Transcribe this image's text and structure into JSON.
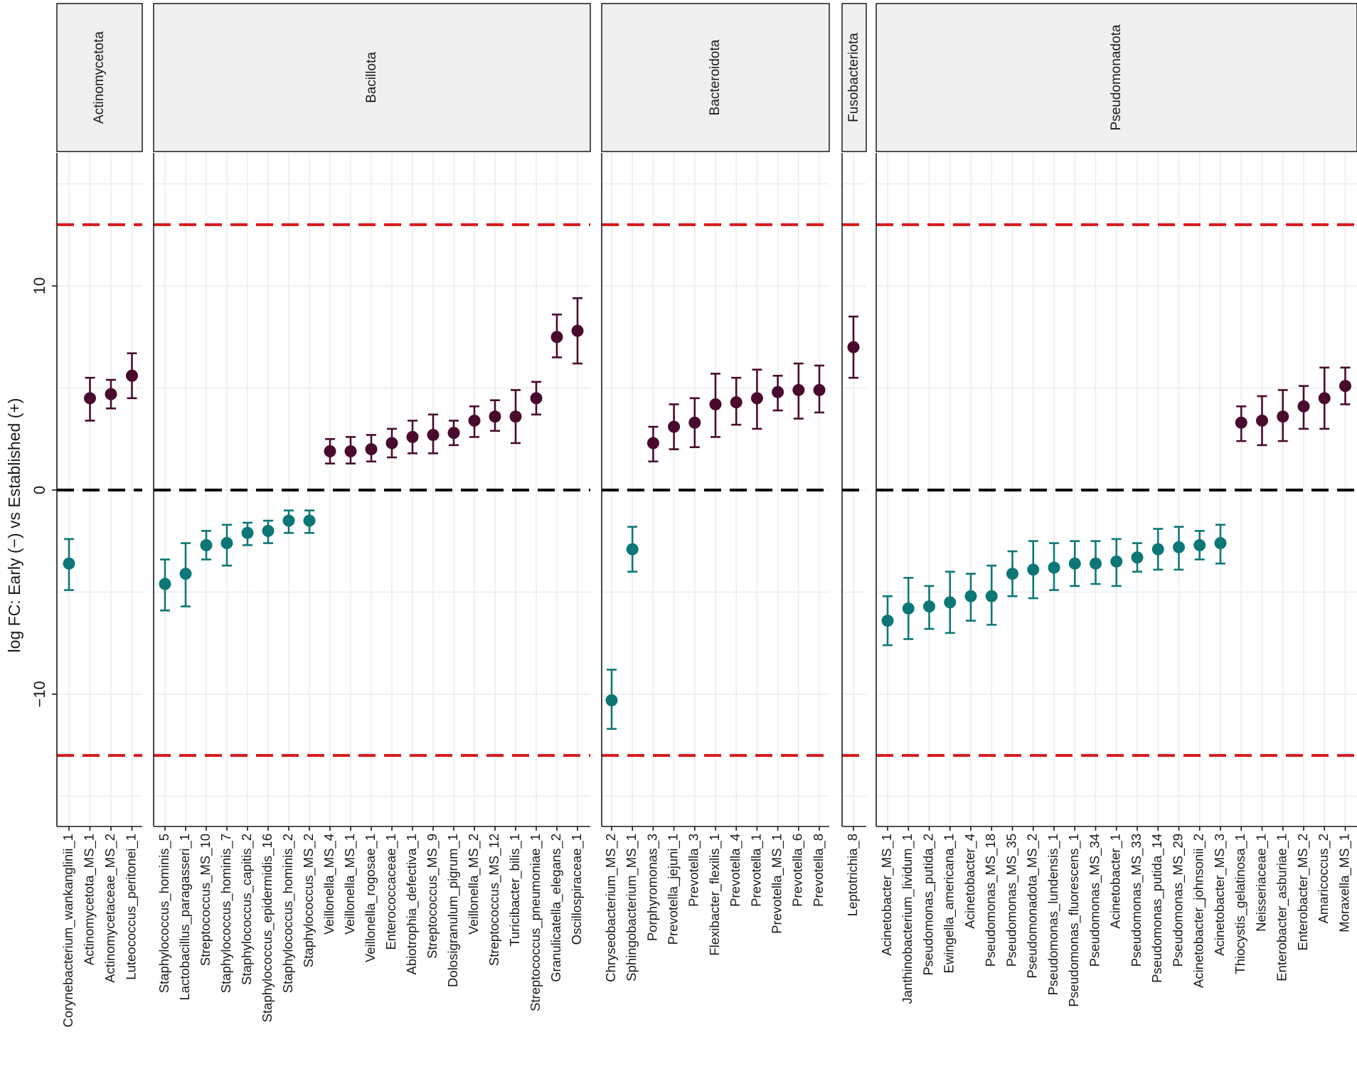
{
  "chart_data": {
    "type": "scatter",
    "subtype": "point_with_error_bars_faceted",
    "ylabel": "log FC: Early (−) vs Established (+)",
    "ylim": [
      -16.5,
      16.5
    ],
    "yticks": [
      -10,
      0,
      10
    ],
    "ytick_labels": [
      "−10",
      "0",
      "10"
    ],
    "reference_lines": [
      {
        "y": 0,
        "color": "#000000",
        "style": "dashed"
      },
      {
        "y": 13,
        "color": "#d7191c",
        "style": "dashed"
      },
      {
        "y": -13,
        "color": "#d7191c",
        "style": "dashed"
      }
    ],
    "colors": {
      "positive": "#4a0a2e",
      "negative": "#0d7777"
    },
    "facets": [
      {
        "name": "Actinomycetota",
        "taxa": [
          {
            "label": "Corynebacterium_wankanglinii_1",
            "value": -3.6,
            "low": -4.9,
            "high": -2.4
          },
          {
            "label": "Actinomycetota_MS_1",
            "value": 4.5,
            "low": 3.4,
            "high": 5.5
          },
          {
            "label": "Actinomycetaceae_MS_2",
            "value": 4.7,
            "low": 4.0,
            "high": 5.4
          },
          {
            "label": "Luteococcus_peritonei_1",
            "value": 5.6,
            "low": 4.5,
            "high": 6.7
          }
        ]
      },
      {
        "name": "Bacillota",
        "taxa": [
          {
            "label": "Staphylococcus_hominis_5",
            "value": -4.6,
            "low": -5.9,
            "high": -3.4
          },
          {
            "label": "Lactobacillus_paragasseri_1",
            "value": -4.1,
            "low": -5.7,
            "high": -2.6
          },
          {
            "label": "Streptococcus_MS_10",
            "value": -2.7,
            "low": -3.4,
            "high": -2.0
          },
          {
            "label": "Staphylococcus_hominis_7",
            "value": -2.6,
            "low": -3.7,
            "high": -1.7
          },
          {
            "label": "Staphylococcus_capitis_2",
            "value": -2.1,
            "low": -2.7,
            "high": -1.6
          },
          {
            "label": "Staphylococcus_epidermidis_16",
            "value": -2.0,
            "low": -2.6,
            "high": -1.5
          },
          {
            "label": "Staphylococcus_hominis_2",
            "value": -1.5,
            "low": -2.1,
            "high": -1.0
          },
          {
            "label": "Staphylococcus_MS_2",
            "value": -1.5,
            "low": -2.1,
            "high": -1.0
          },
          {
            "label": "Veillonella_MS_4",
            "value": 1.9,
            "low": 1.3,
            "high": 2.5
          },
          {
            "label": "Veillonella_MS_1",
            "value": 1.9,
            "low": 1.3,
            "high": 2.6
          },
          {
            "label": "Veillonella_rogosae_1",
            "value": 2.0,
            "low": 1.4,
            "high": 2.7
          },
          {
            "label": "Enterococcaceae_1",
            "value": 2.3,
            "low": 1.6,
            "high": 3.0
          },
          {
            "label": "Abiotrophia_defectiva_1",
            "value": 2.6,
            "low": 1.8,
            "high": 3.4
          },
          {
            "label": "Streptococcus_MS_9",
            "value": 2.7,
            "low": 1.8,
            "high": 3.7
          },
          {
            "label": "Dolosigranulum_pigrum_1",
            "value": 2.8,
            "low": 2.2,
            "high": 3.4
          },
          {
            "label": "Veillonella_MS_2",
            "value": 3.4,
            "low": 2.6,
            "high": 4.1
          },
          {
            "label": "Streptococcus_MS_12",
            "value": 3.6,
            "low": 2.9,
            "high": 4.4
          },
          {
            "label": "Turicibacter_bilis_1",
            "value": 3.6,
            "low": 2.3,
            "high": 4.9
          },
          {
            "label": "Streptococcus_pneumoniae_1",
            "value": 4.5,
            "low": 3.7,
            "high": 5.3
          },
          {
            "label": "Granulicatella_elegans_2",
            "value": 7.5,
            "low": 6.5,
            "high": 8.6
          },
          {
            "label": "Oscillospiraceae_1",
            "value": 7.8,
            "low": 6.2,
            "high": 9.4
          }
        ]
      },
      {
        "name": "Bacteroidota",
        "taxa": [
          {
            "label": "Chryseobacterium_MS_2",
            "value": -10.3,
            "low": -11.7,
            "high": -8.8
          },
          {
            "label": "Sphingobacterium_MS_1",
            "value": -2.9,
            "low": -4.0,
            "high": -1.8
          },
          {
            "label": "Porphyromonas_3",
            "value": 2.3,
            "low": 1.4,
            "high": 3.1
          },
          {
            "label": "Prevotella_jejuni_1",
            "value": 3.1,
            "low": 2.0,
            "high": 4.2
          },
          {
            "label": "Prevotella_3",
            "value": 3.3,
            "low": 2.1,
            "high": 4.5
          },
          {
            "label": "Flexibacter_flexilis_1",
            "value": 4.2,
            "low": 2.6,
            "high": 5.7
          },
          {
            "label": "Prevotella_4",
            "value": 4.3,
            "low": 3.2,
            "high": 5.5
          },
          {
            "label": "Prevotella_1",
            "value": 4.5,
            "low": 3.0,
            "high": 5.9
          },
          {
            "label": "Prevotella_MS_1",
            "value": 4.8,
            "low": 3.9,
            "high": 5.6
          },
          {
            "label": "Prevotella_6",
            "value": 4.9,
            "low": 3.5,
            "high": 6.2
          },
          {
            "label": "Prevotella_8",
            "value": 4.9,
            "low": 3.8,
            "high": 6.1
          }
        ]
      },
      {
        "name": "Fusobacteriota",
        "taxa": [
          {
            "label": "Leptotrichia_8",
            "value": 7.0,
            "low": 5.5,
            "high": 8.5
          }
        ]
      },
      {
        "name": "Pseudomonadota",
        "taxa": [
          {
            "label": "Acinetobacter_MS_1",
            "value": -6.4,
            "low": -7.6,
            "high": -5.2
          },
          {
            "label": "Janthinobacterium_lividum_1",
            "value": -5.8,
            "low": -7.3,
            "high": -4.3
          },
          {
            "label": "Pseudomonas_putida_2",
            "value": -5.7,
            "low": -6.8,
            "high": -4.7
          },
          {
            "label": "Ewingella_americana_1",
            "value": -5.5,
            "low": -7.0,
            "high": -4.0
          },
          {
            "label": "Acinetobacter_4",
            "value": -5.2,
            "low": -6.4,
            "high": -4.1
          },
          {
            "label": "Pseudomonas_MS_18",
            "value": -5.2,
            "low": -6.6,
            "high": -3.7
          },
          {
            "label": "Pseudomonas_MS_35",
            "value": -4.1,
            "low": -5.2,
            "high": -3.0
          },
          {
            "label": "Pseudomonadota_MS_2",
            "value": -3.9,
            "low": -5.3,
            "high": -2.5
          },
          {
            "label": "Pseudomonas_lundensis_1",
            "value": -3.8,
            "low": -4.9,
            "high": -2.6
          },
          {
            "label": "Pseudomonas_fluorescens_1",
            "value": -3.6,
            "low": -4.7,
            "high": -2.5
          },
          {
            "label": "Pseudomonas_MS_34",
            "value": -3.6,
            "low": -4.6,
            "high": -2.5
          },
          {
            "label": "Acinetobacter_1",
            "value": -3.5,
            "low": -4.7,
            "high": -2.4
          },
          {
            "label": "Pseudomonas_MS_33",
            "value": -3.3,
            "low": -4.0,
            "high": -2.6
          },
          {
            "label": "Pseudomonas_putida_14",
            "value": -2.9,
            "low": -3.9,
            "high": -1.9
          },
          {
            "label": "Pseudomonas_MS_29",
            "value": -2.8,
            "low": -3.9,
            "high": -1.8
          },
          {
            "label": "Acinetobacter_johnsonii_2",
            "value": -2.7,
            "low": -3.4,
            "high": -2.0
          },
          {
            "label": "Acinetobacter_MS_3",
            "value": -2.6,
            "low": -3.6,
            "high": -1.7
          },
          {
            "label": "Thiocystis_gelatinosa_1",
            "value": 3.3,
            "low": 2.4,
            "high": 4.1
          },
          {
            "label": "Neisseriaceae_1",
            "value": 3.4,
            "low": 2.2,
            "high": 4.6
          },
          {
            "label": "Enterobacter_asburiae_1",
            "value": 3.6,
            "low": 2.4,
            "high": 4.9
          },
          {
            "label": "Enterobacter_MS_2",
            "value": 4.1,
            "low": 3.0,
            "high": 5.1
          },
          {
            "label": "Amaricoccus_2",
            "value": 4.5,
            "low": 3.0,
            "high": 6.0
          },
          {
            "label": "Moraxella_MS_1",
            "value": 5.1,
            "low": 4.2,
            "high": 6.0
          }
        ]
      }
    ]
  }
}
